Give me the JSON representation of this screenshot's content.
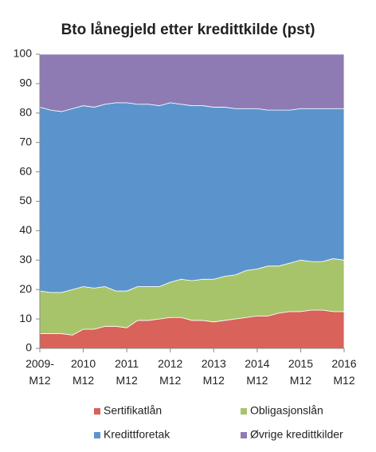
{
  "chart_data": {
    "type": "stacked-area",
    "title": "Bto lånegjeld etter kredittkilde (pst)",
    "categories": [
      "2009-\nM12",
      null,
      null,
      null,
      "2010\nM12",
      null,
      null,
      null,
      "2011\nM12",
      null,
      null,
      null,
      "2012\nM12",
      null,
      null,
      null,
      "2013\nM12",
      null,
      null,
      null,
      "2014\nM12",
      null,
      null,
      null,
      "2015\nM12",
      null,
      null,
      null,
      "2016\nM12"
    ],
    "ylim": [
      0,
      100
    ],
    "yticks": [
      0,
      10,
      20,
      30,
      40,
      50,
      60,
      70,
      80,
      90,
      100
    ],
    "series": [
      {
        "name": "Sertifikatlån",
        "color": "#d9625a",
        "values": [
          5,
          5,
          5,
          4.5,
          6.5,
          6.5,
          7.5,
          7.5,
          7,
          9.5,
          9.5,
          10,
          10.5,
          10.5,
          9.5,
          9.5,
          9,
          9.5,
          10,
          10.5,
          11,
          11,
          12,
          12.5,
          12.5,
          13,
          13,
          12.5,
          12.5
        ]
      },
      {
        "name": "Obligasjonslån",
        "color": "#a8c46b",
        "values": [
          14.5,
          14,
          14,
          15.5,
          14.5,
          14,
          13.5,
          12,
          12.5,
          11.5,
          11.5,
          11,
          12,
          13,
          13.5,
          14,
          14.5,
          15,
          15,
          16,
          16,
          17,
          16,
          16.5,
          17.5,
          16.5,
          16.5,
          18,
          17.5
        ]
      },
      {
        "name": "Kredittforetak",
        "color": "#5b94cd",
        "values": [
          62.5,
          62,
          61.5,
          61.5,
          61.5,
          61.5,
          62,
          64,
          64,
          62,
          62,
          61.5,
          61,
          59.5,
          59.5,
          59,
          58.5,
          57.5,
          56.5,
          55,
          54.5,
          53,
          53,
          52,
          51.5,
          52,
          52,
          51,
          51.5
        ]
      },
      {
        "name": "Øvrige kredittkilder",
        "color": "#8e7bb4",
        "values": [
          18,
          19,
          19.5,
          18.5,
          17.5,
          18,
          17,
          16.5,
          16.5,
          17,
          17,
          17.5,
          16.5,
          17,
          17.5,
          17.5,
          18,
          18,
          18.5,
          18.5,
          18.5,
          19,
          19,
          19,
          18.5,
          18.5,
          18.5,
          18.5,
          18.5
        ]
      }
    ]
  }
}
